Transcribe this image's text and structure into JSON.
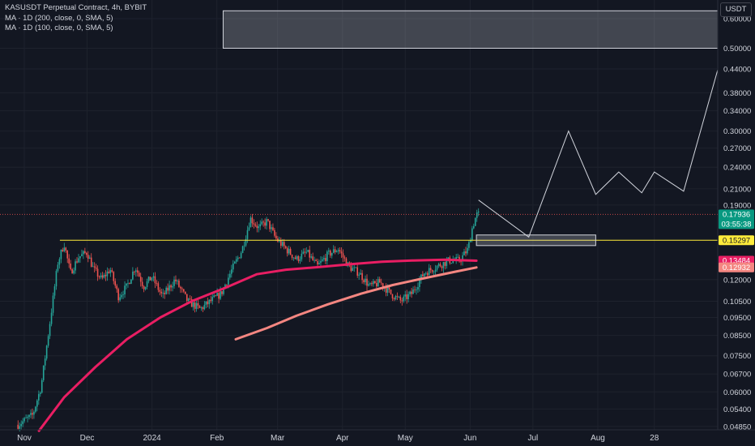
{
  "legend": {
    "title": "KASUSDT Perpetual Contract, 4h, BYBIT",
    "ma1": "MA · 1D (200, close, 0, SMA, 5)",
    "ma2": "MA · 1D (100, close, 0, SMA, 5)"
  },
  "currency_button": "USDT",
  "colors": {
    "background": "#131722",
    "up": "#26a69a",
    "down": "#ef5350",
    "ma200": "#e91e63",
    "ma100": "#f48681",
    "level": "#ffeb3b",
    "projection": "#d1d4dc",
    "grid": "#1e222d"
  },
  "chart_data": {
    "type": "candlestick",
    "symbol": "KASUSDT",
    "exchange": "BYBIT",
    "interval": "4h",
    "y_scale": "log",
    "ylim": [
      0.0475,
      0.66
    ],
    "xlim": [
      "2023-11-01",
      "2024-09-30"
    ],
    "y_ticks": [
      "0.60000",
      "0.50000",
      "0.44000",
      "0.38000",
      "0.34000",
      "0.30000",
      "0.27000",
      "0.24000",
      "0.21000",
      "0.19000",
      "0.12000",
      "0.10500",
      "0.09500",
      "0.08500",
      "0.07500",
      "0.06700",
      "0.06000",
      "0.05400",
      "0.04850"
    ],
    "x_ticks": [
      {
        "label": "Nov",
        "date": "2023-11-01"
      },
      {
        "label": "Dec",
        "date": "2023-12-01"
      },
      {
        "label": "2024",
        "date": "2024-01-01"
      },
      {
        "label": "Feb",
        "date": "2024-02-01"
      },
      {
        "label": "Mar",
        "date": "2024-03-01"
      },
      {
        "label": "Apr",
        "date": "2024-04-01"
      },
      {
        "label": "May",
        "date": "2024-05-01"
      },
      {
        "label": "Jun",
        "date": "2024-06-01"
      },
      {
        "label": "Jul",
        "date": "2024-07-01"
      },
      {
        "label": "Aug",
        "date": "2024-08-01"
      },
      {
        "label": "28",
        "date": "2024-08-28"
      }
    ],
    "price_path": [
      [
        "2023-10-29",
        0.049
      ],
      [
        "2023-11-05",
        0.052
      ],
      [
        "2023-11-09",
        0.062
      ],
      [
        "2023-11-13",
        0.09
      ],
      [
        "2023-11-17",
        0.133
      ],
      [
        "2023-11-20",
        0.15
      ],
      [
        "2023-11-23",
        0.125
      ],
      [
        "2023-11-27",
        0.138
      ],
      [
        "2023-12-01",
        0.142
      ],
      [
        "2023-12-04",
        0.128
      ],
      [
        "2023-12-08",
        0.12
      ],
      [
        "2023-12-12",
        0.128
      ],
      [
        "2023-12-16",
        0.108
      ],
      [
        "2023-12-20",
        0.115
      ],
      [
        "2023-12-24",
        0.13
      ],
      [
        "2023-12-28",
        0.115
      ],
      [
        "2024-01-01",
        0.122
      ],
      [
        "2024-01-06",
        0.108
      ],
      [
        "2024-01-12",
        0.12
      ],
      [
        "2024-01-18",
        0.105
      ],
      [
        "2024-01-24",
        0.1
      ],
      [
        "2024-01-29",
        0.105
      ],
      [
        "2024-02-03",
        0.11
      ],
      [
        "2024-02-08",
        0.127
      ],
      [
        "2024-02-13",
        0.144
      ],
      [
        "2024-02-17",
        0.175
      ],
      [
        "2024-02-21",
        0.165
      ],
      [
        "2024-02-25",
        0.172
      ],
      [
        "2024-02-29",
        0.155
      ],
      [
        "2024-03-05",
        0.145
      ],
      [
        "2024-03-10",
        0.136
      ],
      [
        "2024-03-15",
        0.142
      ],
      [
        "2024-03-20",
        0.13
      ],
      [
        "2024-03-25",
        0.14
      ],
      [
        "2024-03-30",
        0.145
      ],
      [
        "2024-04-04",
        0.13
      ],
      [
        "2024-04-09",
        0.125
      ],
      [
        "2024-04-14",
        0.115
      ],
      [
        "2024-04-19",
        0.118
      ],
      [
        "2024-04-24",
        0.11
      ],
      [
        "2024-04-29",
        0.105
      ],
      [
        "2024-05-04",
        0.11
      ],
      [
        "2024-05-10",
        0.125
      ],
      [
        "2024-05-16",
        0.13
      ],
      [
        "2024-05-22",
        0.135
      ],
      [
        "2024-05-27",
        0.135
      ],
      [
        "2024-05-31",
        0.145
      ],
      [
        "2024-06-02",
        0.165
      ],
      [
        "2024-06-04",
        0.179
      ],
      [
        "2024-06-05",
        0.1794
      ]
    ],
    "series": [
      {
        "name": "MA · 1D (200, close, 0, SMA, 5)",
        "color": "#e91e63",
        "x": [
          "2023-11-08",
          "2023-11-20",
          "2023-12-05",
          "2023-12-20",
          "2024-01-05",
          "2024-01-20",
          "2024-02-05",
          "2024-02-20",
          "2024-03-05",
          "2024-03-20",
          "2024-04-05",
          "2024-04-20",
          "2024-05-05",
          "2024-05-20",
          "2024-06-04"
        ],
        "y": [
          0.0472,
          0.058,
          0.07,
          0.083,
          0.095,
          0.105,
          0.114,
          0.124,
          0.1275,
          0.1295,
          0.132,
          0.134,
          0.135,
          0.1356,
          0.1348
        ]
      },
      {
        "name": "MA · 1D (100, close, 0, SMA, 5)",
        "color": "#f48681",
        "x": [
          "2024-02-10",
          "2024-02-25",
          "2024-03-10",
          "2024-03-25",
          "2024-04-10",
          "2024-04-25",
          "2024-05-10",
          "2024-05-25",
          "2024-06-04"
        ],
        "y": [
          0.083,
          0.089,
          0.096,
          0.103,
          0.11,
          0.116,
          0.121,
          0.126,
          0.1293
        ]
      }
    ],
    "levels": [
      {
        "price": 0.15297,
        "from": "2023-11-18",
        "to": "2024-09-30"
      }
    ],
    "zones": [
      {
        "x": [
          "2024-06-04",
          "2024-07-31"
        ],
        "y": [
          0.148,
          0.158
        ]
      },
      {
        "x": [
          "2024-02-04",
          "2024-09-30"
        ],
        "y": [
          0.5,
          0.63
        ]
      }
    ],
    "projection": [
      [
        "2024-06-05",
        0.196
      ],
      [
        "2024-06-29",
        0.156
      ],
      [
        "2024-07-18",
        0.3
      ],
      [
        "2024-07-31",
        0.203
      ],
      [
        "2024-08-11",
        0.233
      ],
      [
        "2024-08-22",
        0.205
      ],
      [
        "2024-08-28",
        0.233
      ],
      [
        "2024-09-11",
        0.207
      ],
      [
        "2024-10-03",
        0.57
      ]
    ],
    "price_tags": [
      {
        "label": "0.17936",
        "sub": "03:55:38",
        "price": 0.17936,
        "bg": "#089981",
        "fg": "#ffffff"
      },
      {
        "label": "0.15297",
        "price": 0.15297,
        "bg": "#ffeb3b",
        "fg": "#131722"
      },
      {
        "label": "0.13484",
        "price": 0.13484,
        "bg": "#e91e63",
        "fg": "#ffffff"
      },
      {
        "label": "0.12932",
        "price": 0.12932,
        "bg": "#f48681",
        "fg": "#ffffff"
      }
    ]
  }
}
